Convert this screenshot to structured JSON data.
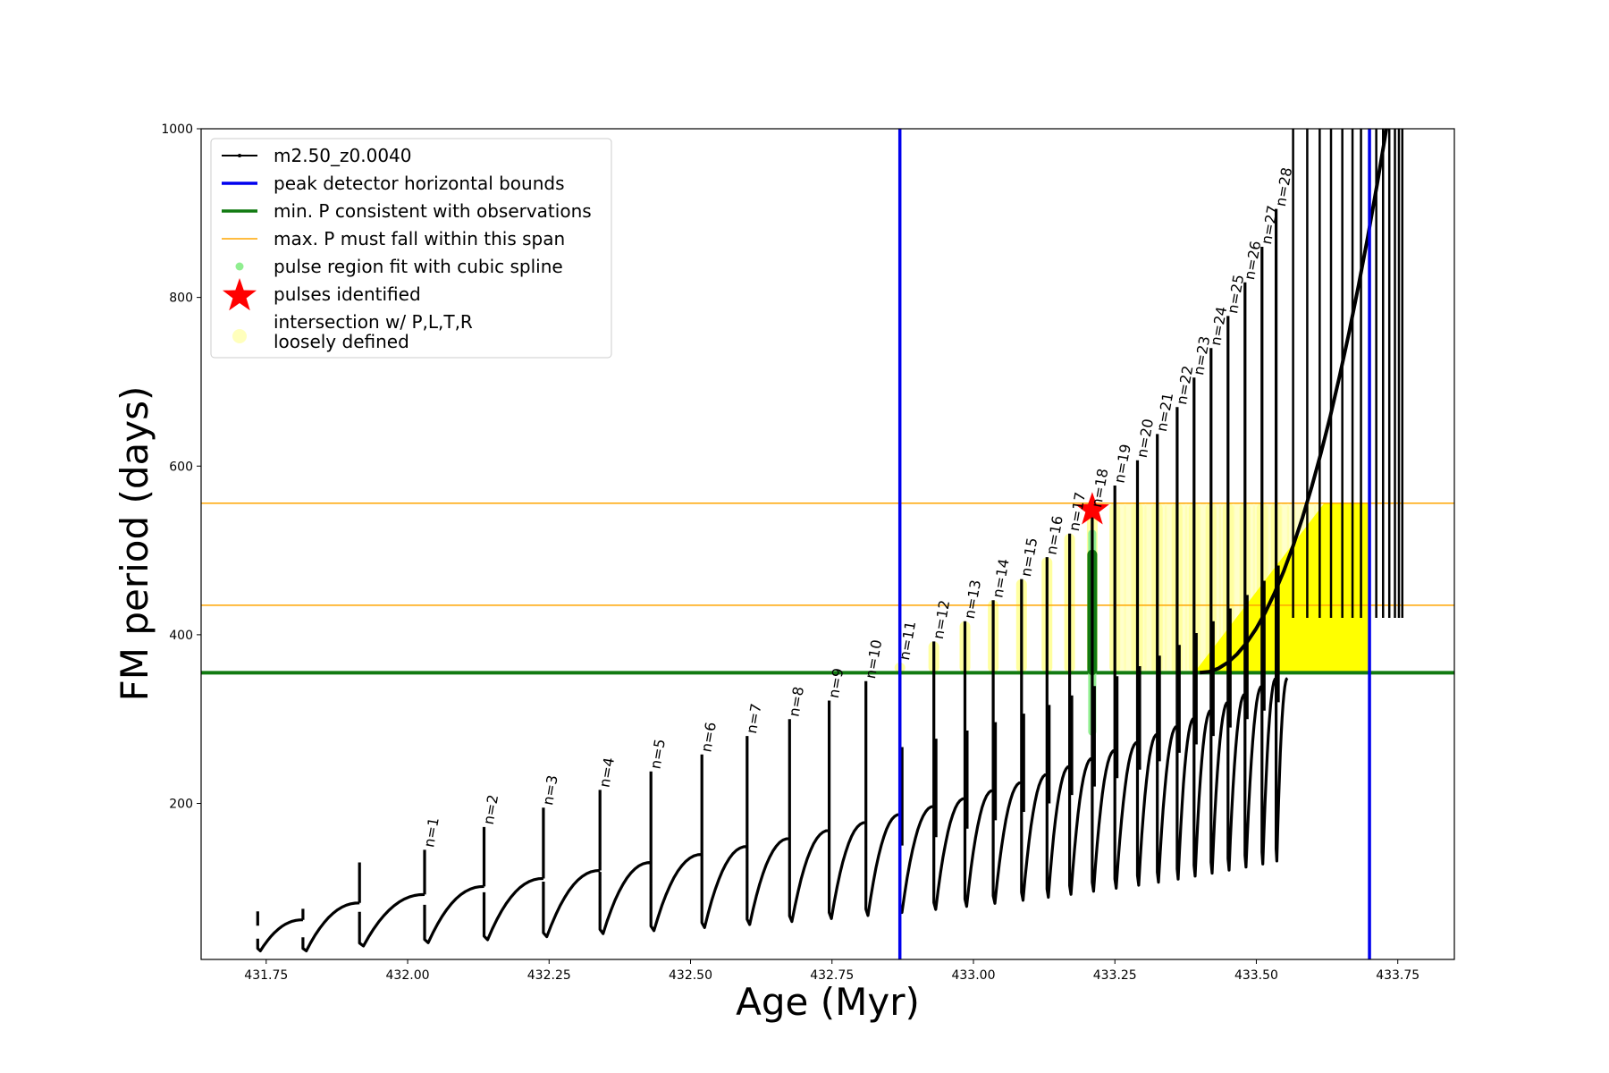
{
  "chart_data": {
    "type": "line",
    "title": "",
    "xlabel": "Age (Myr)",
    "ylabel": "FM period (days)",
    "xlim": [
      431.635,
      433.85
    ],
    "ylim": [
      15,
      1000
    ],
    "xticks": [
      431.75,
      432.0,
      432.25,
      432.5,
      432.75,
      433.0,
      433.25,
      433.5,
      433.75
    ],
    "xtick_labels": [
      "431.75",
      "432.00",
      "432.25",
      "432.50",
      "432.75",
      "433.00",
      "433.25",
      "433.50",
      "433.75"
    ],
    "yticks": [
      200,
      400,
      600,
      800,
      1000
    ],
    "ytick_labels": [
      "200",
      "400",
      "600",
      "800",
      "1000"
    ],
    "grid": false,
    "legend_position": "top-left",
    "legend": [
      {
        "label": "m2.50_z0.0040",
        "style": "black line with dots"
      },
      {
        "label": "peak detector horizontal bounds",
        "style": "blue line"
      },
      {
        "label": "min. P consistent with observations",
        "style": "green line"
      },
      {
        "label": "max. P must fall within this span",
        "style": "orange line"
      },
      {
        "label": "pulse region fit with cubic spline",
        "style": "light green dot"
      },
      {
        "label": "pulses identified",
        "style": "red star"
      },
      {
        "label": "intersection w/ P,L,T,R\nloosely defined",
        "style": "pale yellow dot"
      }
    ],
    "vertical_lines": [
      {
        "series": "peak detector horizontal bounds",
        "x": 432.87,
        "color": "#0000ee"
      },
      {
        "series": "peak detector horizontal bounds",
        "x": 433.7,
        "color": "#0000ee"
      }
    ],
    "horizontal_lines": [
      {
        "series": "min. P consistent with observations",
        "y": 355,
        "color": "#117a11"
      },
      {
        "series": "max. P must fall within this span",
        "y": 556,
        "color": "#ffa500"
      },
      {
        "series": "max. P must fall within this span",
        "y": 435,
        "color": "#ffa500"
      }
    ],
    "pulses_identified": [
      {
        "x": 433.21,
        "y": 548
      }
    ],
    "pulse_labels": [
      {
        "label": "n=1",
        "x": 432.03,
        "peak": 145
      },
      {
        "label": "n=2",
        "x": 432.135,
        "peak": 172
      },
      {
        "label": "n=3",
        "x": 432.24,
        "peak": 195
      },
      {
        "label": "n=4",
        "x": 432.34,
        "peak": 216
      },
      {
        "label": "n=5",
        "x": 432.43,
        "peak": 238
      },
      {
        "label": "n=6",
        "x": 432.52,
        "peak": 258
      },
      {
        "label": "n=7",
        "x": 432.6,
        "peak": 280
      },
      {
        "label": "n=8",
        "x": 432.675,
        "peak": 300
      },
      {
        "label": "n=9",
        "x": 432.745,
        "peak": 322
      },
      {
        "label": "n=10",
        "x": 432.81,
        "peak": 345
      },
      {
        "label": "n=11",
        "x": 432.87,
        "peak": 367
      },
      {
        "label": "n=12",
        "x": 432.93,
        "peak": 392
      },
      {
        "label": "n=13",
        "x": 432.985,
        "peak": 416
      },
      {
        "label": "n=14",
        "x": 433.035,
        "peak": 441
      },
      {
        "label": "n=15",
        "x": 433.085,
        "peak": 466
      },
      {
        "label": "n=16",
        "x": 433.13,
        "peak": 492
      },
      {
        "label": "n=17",
        "x": 433.17,
        "peak": 520
      },
      {
        "label": "n=18",
        "x": 433.21,
        "peak": 548
      },
      {
        "label": "n=19",
        "x": 433.25,
        "peak": 577
      },
      {
        "label": "n=20",
        "x": 433.29,
        "peak": 607
      },
      {
        "label": "n=21",
        "x": 433.325,
        "peak": 638
      },
      {
        "label": "n=22",
        "x": 433.36,
        "peak": 670
      },
      {
        "label": "n=23",
        "x": 433.39,
        "peak": 705
      },
      {
        "label": "n=24",
        "x": 433.42,
        "peak": 740
      },
      {
        "label": "n=25",
        "x": 433.45,
        "peak": 778
      },
      {
        "label": "n=26",
        "x": 433.48,
        "peak": 818
      },
      {
        "label": "n=27",
        "x": 433.51,
        "peak": 860
      },
      {
        "label": "n=28",
        "x": 433.535,
        "peak": 905
      }
    ]
  }
}
